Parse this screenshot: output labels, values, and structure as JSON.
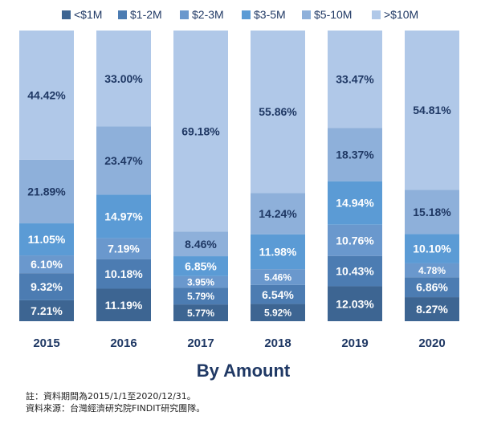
{
  "chart_data": {
    "type": "bar",
    "stacked": true,
    "percent_stacked": true,
    "title": "By Amount",
    "xlabel": "",
    "ylabel": "",
    "ylim": [
      0,
      100
    ],
    "grid": false,
    "legend_position": "top",
    "categories": [
      "2015",
      "2016",
      "2017",
      "2018",
      "2019",
      "2020"
    ],
    "series": [
      {
        "name": "<$1M",
        "color": "#3d6592",
        "values": [
          7.21,
          11.19,
          5.77,
          5.92,
          12.03,
          8.27
        ],
        "labels": [
          "7.21%",
          "11.19%",
          "5.77%",
          "5.92%",
          "12.03%",
          "8.27%"
        ]
      },
      {
        "name": "$1-2M",
        "color": "#4c7cb2",
        "values": [
          9.32,
          10.18,
          5.79,
          6.54,
          10.43,
          6.86
        ],
        "labels": [
          "9.32%",
          "10.18%",
          "5.79%",
          "6.54%",
          "10.43%",
          "6.86%"
        ]
      },
      {
        "name": "$2-3M",
        "color": "#6a98cd",
        "values": [
          6.1,
          7.19,
          3.95,
          5.46,
          10.76,
          4.78
        ],
        "labels": [
          "6.10%",
          "7.19%",
          "3.95%",
          "5.46%",
          "10.76%",
          "4.78%"
        ]
      },
      {
        "name": "$3-5M",
        "color": "#5b9bd5",
        "values": [
          11.05,
          14.97,
          6.85,
          11.98,
          14.94,
          10.1
        ],
        "labels": [
          "11.05%",
          "14.97%",
          "6.85%",
          "11.98%",
          "14.94%",
          "10.10%"
        ]
      },
      {
        "name": "$5-10M",
        "color": "#8eb0da",
        "values": [
          21.89,
          23.47,
          8.46,
          14.24,
          18.37,
          15.18
        ],
        "labels": [
          "21.89%",
          "23.47%",
          "8.46%",
          "14.24%",
          "18.37%",
          "15.18%"
        ]
      },
      {
        "name": ">$10M",
        "color": "#b0c8e8",
        "values": [
          44.42,
          33.0,
          69.18,
          55.86,
          33.47,
          54.81
        ],
        "labels": [
          "44.42%",
          "33.00%",
          "69.18%",
          "55.86%",
          "33.47%",
          "54.81%"
        ]
      }
    ],
    "label_color_dark": "#1f3864",
    "label_color_light": "#ffffff",
    "title_color": "#1f3864"
  },
  "notes": {
    "line1": "註：資料期間為2015/1/1至2020/12/31。",
    "line2": "資料來源：台灣經濟研究院FINDIT研究團隊。"
  }
}
